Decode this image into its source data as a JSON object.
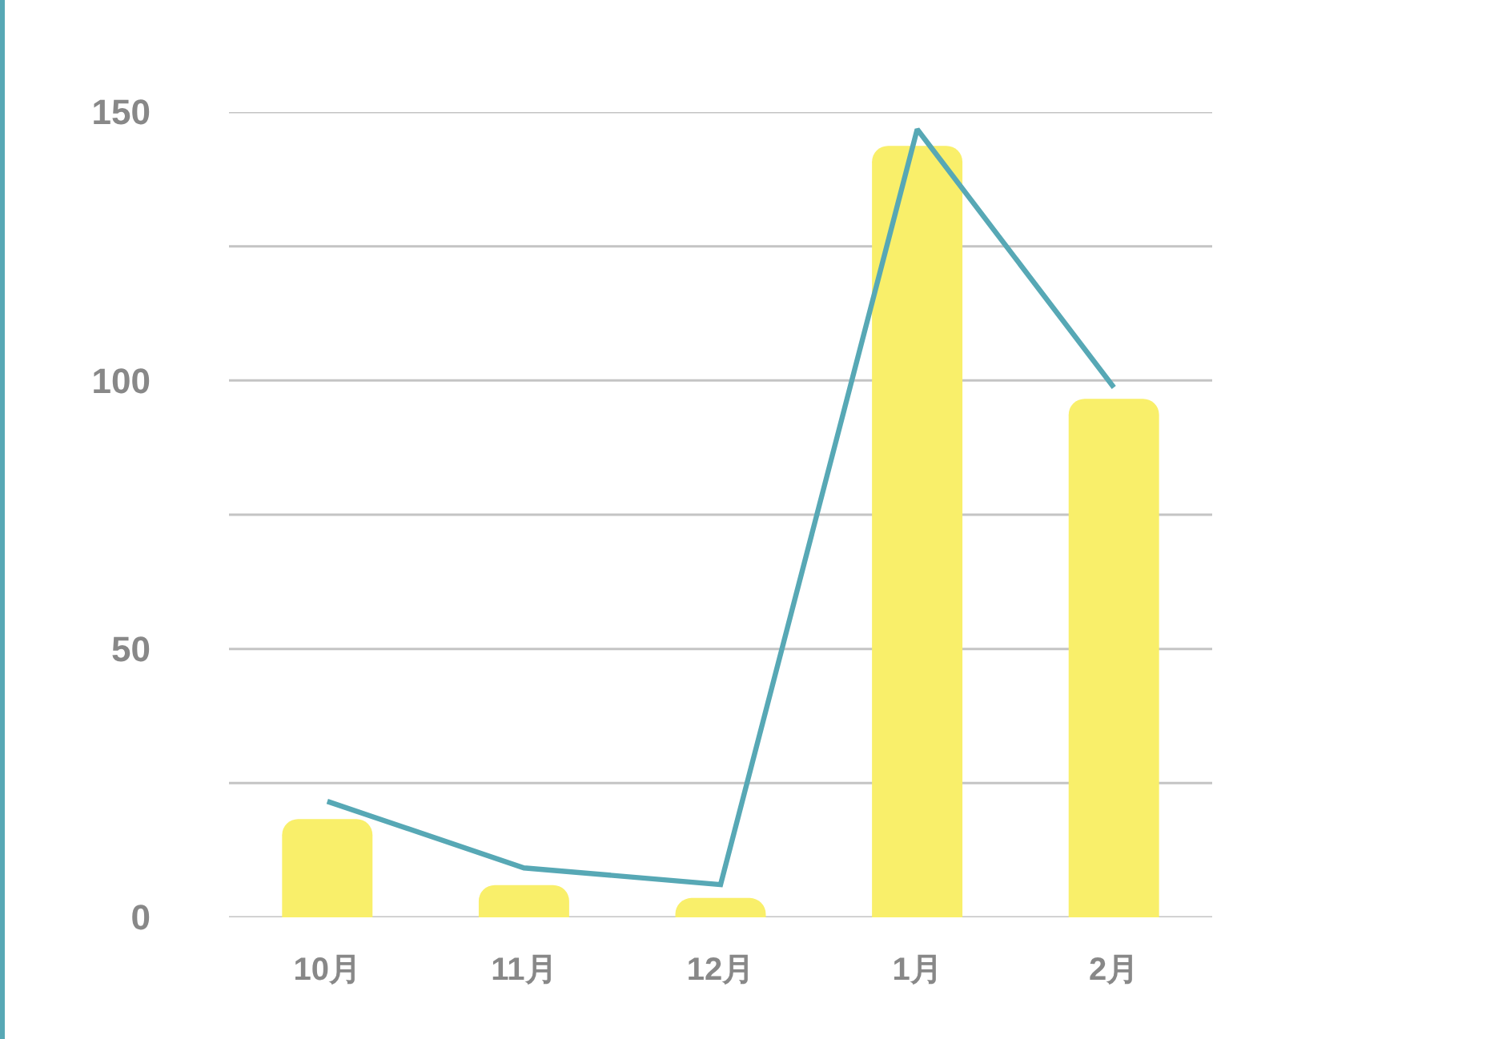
{
  "chart_data": {
    "type": "bar",
    "categories": [
      "10月",
      "11月",
      "12月",
      "1月",
      "2月"
    ],
    "series": [
      {
        "color": "#f9ef6a",
        "values": [
          18.3,
          6,
          3.6,
          143.7,
          96.6
        ]
      },
      {
        "type": "line",
        "color": "#57a8b5",
        "values": [
          21.6,
          9.2,
          6.1,
          146.8,
          98.7
        ]
      }
    ],
    "ylim": [
      0,
      150
    ],
    "yticks": [
      0,
      {
        "value": 25,
        "label": null
      },
      50,
      {
        "value": 75,
        "label": null
      },
      100,
      {
        "value": 125,
        "label": null
      },
      150
    ],
    "grid": "y"
  }
}
